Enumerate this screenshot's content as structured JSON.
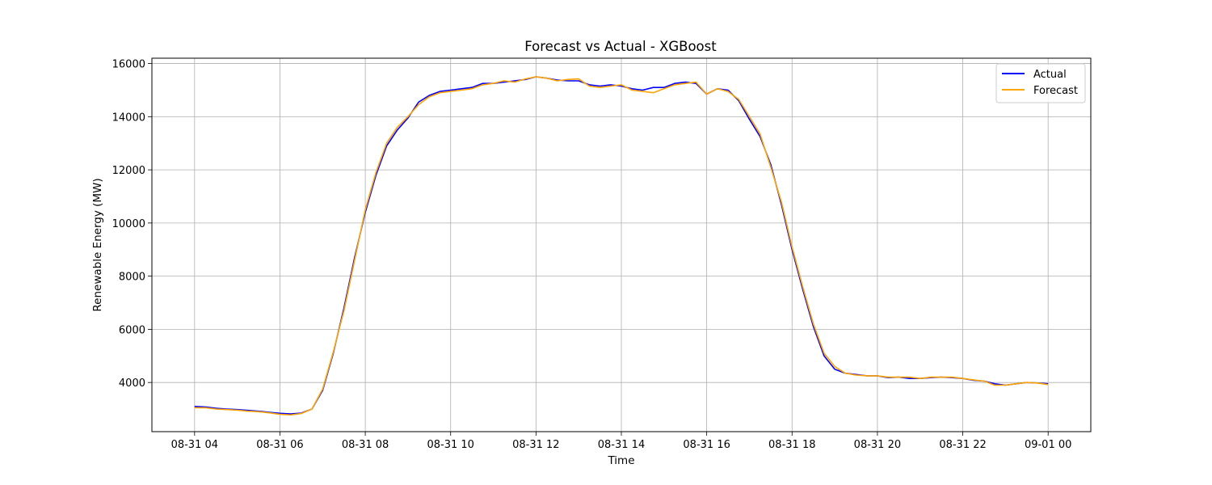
{
  "chart_data": {
    "type": "line",
    "title": "Forecast vs Actual - XGBoost",
    "xlabel": "Time",
    "ylabel": "Renewable Energy (MW)",
    "x_start_hour": 4,
    "x_end_hour": 24,
    "xlim_hours": [
      3,
      25
    ],
    "ylim": [
      2150,
      16200
    ],
    "grid": true,
    "legend_position": "top-right",
    "x_ticks": [
      {
        "hour": 4,
        "label": "08-31 04"
      },
      {
        "hour": 6,
        "label": "08-31 06"
      },
      {
        "hour": 8,
        "label": "08-31 08"
      },
      {
        "hour": 10,
        "label": "08-31 10"
      },
      {
        "hour": 12,
        "label": "08-31 12"
      },
      {
        "hour": 14,
        "label": "08-31 14"
      },
      {
        "hour": 16,
        "label": "08-31 16"
      },
      {
        "hour": 18,
        "label": "08-31 18"
      },
      {
        "hour": 20,
        "label": "08-31 20"
      },
      {
        "hour": 22,
        "label": "08-31 22"
      },
      {
        "hour": 24,
        "label": "09-01 00"
      }
    ],
    "y_ticks": [
      {
        "value": 4000,
        "label": "4000"
      },
      {
        "value": 6000,
        "label": "6000"
      },
      {
        "value": 8000,
        "label": "8000"
      },
      {
        "value": 10000,
        "label": "10000"
      },
      {
        "value": 12000,
        "label": "12000"
      },
      {
        "value": 14000,
        "label": "14000"
      },
      {
        "value": 16000,
        "label": "16000"
      }
    ],
    "x_hours": [
      4,
      4.25,
      4.5,
      4.75,
      5,
      5.25,
      5.5,
      5.75,
      6,
      6.25,
      6.5,
      6.75,
      7,
      7.25,
      7.5,
      7.75,
      8,
      8.25,
      8.5,
      8.75,
      9,
      9.25,
      9.5,
      9.75,
      10,
      10.25,
      10.5,
      10.75,
      11,
      11.25,
      11.5,
      11.75,
      12,
      12.25,
      12.5,
      12.75,
      13,
      13.25,
      13.5,
      13.75,
      14,
      14.25,
      14.5,
      14.75,
      15,
      15.25,
      15.5,
      15.75,
      16,
      16.25,
      16.5,
      16.75,
      17,
      17.25,
      17.5,
      17.75,
      18,
      18.25,
      18.5,
      18.75,
      19,
      19.25,
      19.5,
      19.75,
      20,
      20.25,
      20.5,
      20.75,
      21,
      21.25,
      21.5,
      21.75,
      22,
      22.25,
      22.5,
      22.75,
      23,
      23.25,
      23.5,
      23.75,
      24
    ],
    "series": [
      {
        "name": "Actual",
        "color": "#0000ff",
        "values": [
          3100,
          3080,
          3030,
          3000,
          2980,
          2950,
          2920,
          2880,
          2840,
          2820,
          2850,
          3000,
          3700,
          5100,
          6800,
          8700,
          10400,
          11800,
          12900,
          13500,
          13950,
          14550,
          14800,
          14950,
          15000,
          15050,
          15100,
          15250,
          15250,
          15300,
          15350,
          15400,
          15500,
          15450,
          15380,
          15350,
          15350,
          15200,
          15150,
          15200,
          15150,
          15050,
          15000,
          15100,
          15100,
          15250,
          15300,
          15250,
          14850,
          15050,
          15000,
          14600,
          13900,
          13250,
          12200,
          10700,
          9000,
          7500,
          6100,
          5000,
          4500,
          4350,
          4300,
          4250,
          4250,
          4180,
          4200,
          4150,
          4150,
          4180,
          4200,
          4180,
          4150,
          4080,
          4050,
          3950,
          3900,
          3950,
          4000,
          3980,
          3950
        ]
      },
      {
        "name": "Forecast",
        "color": "#ffa500",
        "values": [
          3050,
          3050,
          3000,
          2980,
          2960,
          2920,
          2900,
          2860,
          2800,
          2780,
          2830,
          3000,
          3750,
          5150,
          6700,
          8600,
          10500,
          11900,
          13000,
          13600,
          14000,
          14450,
          14750,
          14900,
          14950,
          15000,
          15050,
          15200,
          15250,
          15350,
          15300,
          15420,
          15500,
          15450,
          15350,
          15400,
          15420,
          15150,
          15100,
          15150,
          15200,
          15000,
          14950,
          14900,
          15050,
          15200,
          15250,
          15300,
          14850,
          15050,
          14950,
          14650,
          14000,
          13350,
          12100,
          10800,
          9100,
          7600,
          6200,
          5100,
          4600,
          4350,
          4280,
          4250,
          4250,
          4200,
          4200,
          4200,
          4150,
          4200,
          4200,
          4200,
          4150,
          4100,
          4050,
          3900,
          3900,
          3950,
          4000,
          3980,
          3920
        ]
      }
    ]
  }
}
